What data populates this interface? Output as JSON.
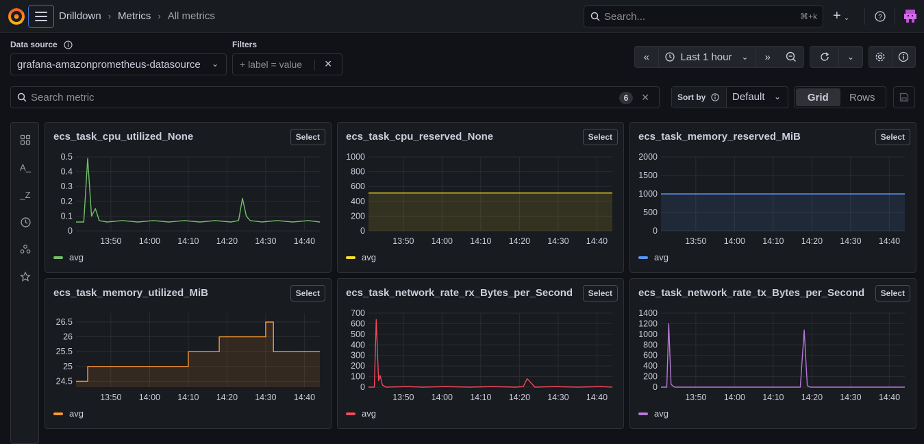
{
  "topbar": {
    "breadcrumb": [
      "Drilldown",
      "Metrics",
      "All metrics"
    ],
    "search_placeholder": "Search...",
    "search_shortcut": "⌘+k",
    "add_label": "+"
  },
  "controls": {
    "datasource_label": "Data source",
    "datasource_value": "grafana-amazonprometheus-datasource",
    "filters_label": "Filters",
    "filters_placeholder": "+ label = value",
    "time_range": "Last 1 hour",
    "metric_search_placeholder": "Search metric",
    "metric_count": "6",
    "sort_label": "Sort by",
    "sort_value": "Default",
    "layout_grid": "Grid",
    "layout_rows": "Rows"
  },
  "colors": {
    "green": "#73bf69",
    "yellow": "#fade2a",
    "blue": "#5794f2",
    "orange": "#ff9830",
    "red": "#f2495c",
    "purple": "#b877d9"
  },
  "panels": [
    {
      "title": "ecs_task_cpu_utilized_None",
      "select": "Select",
      "legend": "avg",
      "color": "#73bf69"
    },
    {
      "title": "ecs_task_cpu_reserved_None",
      "select": "Select",
      "legend": "avg",
      "color": "#fade2a"
    },
    {
      "title": "ecs_task_memory_reserved_MiB",
      "select": "Select",
      "legend": "avg",
      "color": "#5794f2"
    },
    {
      "title": "ecs_task_memory_utilized_MiB",
      "select": "Select",
      "legend": "avg",
      "color": "#ff9830"
    },
    {
      "title": "ecs_task_network_rate_rx_Bytes_per_Second",
      "select": "Select",
      "legend": "avg",
      "color": "#f2495c"
    },
    {
      "title": "ecs_task_network_rate_tx_Bytes_per_Second",
      "select": "Select",
      "legend": "avg",
      "color": "#b877d9"
    }
  ],
  "chart_data": [
    {
      "type": "line",
      "title": "ecs_task_cpu_utilized_None",
      "x_ticks": [
        "13:50",
        "14:00",
        "14:10",
        "14:20",
        "14:30",
        "14:40"
      ],
      "y_ticks": [
        "0",
        "0.1",
        "0.2",
        "0.3",
        "0.4",
        "0.5"
      ],
      "ylim": [
        0,
        0.5
      ],
      "xlim": [
        0,
        63
      ],
      "series": [
        {
          "name": "avg",
          "points": [
            [
              0,
              0.06
            ],
            [
              2,
              0.06
            ],
            [
              3,
              0.49
            ],
            [
              4,
              0.1
            ],
            [
              5,
              0.15
            ],
            [
              6,
              0.07
            ],
            [
              8,
              0.06
            ],
            [
              12,
              0.07
            ],
            [
              16,
              0.06
            ],
            [
              20,
              0.07
            ],
            [
              24,
              0.06
            ],
            [
              28,
              0.07
            ],
            [
              32,
              0.06
            ],
            [
              36,
              0.07
            ],
            [
              40,
              0.06
            ],
            [
              42,
              0.07
            ],
            [
              43,
              0.22
            ],
            [
              44,
              0.1
            ],
            [
              45,
              0.07
            ],
            [
              48,
              0.06
            ],
            [
              52,
              0.07
            ],
            [
              56,
              0.06
            ],
            [
              60,
              0.07
            ],
            [
              63,
              0.06
            ]
          ]
        }
      ]
    },
    {
      "type": "area",
      "title": "ecs_task_cpu_reserved_None",
      "x_ticks": [
        "13:50",
        "14:00",
        "14:10",
        "14:20",
        "14:30",
        "14:40"
      ],
      "y_ticks": [
        "0",
        "200",
        "400",
        "600",
        "800",
        "1000"
      ],
      "ylim": [
        0,
        1000
      ],
      "xlim": [
        0,
        63
      ],
      "series": [
        {
          "name": "avg",
          "points": [
            [
              0,
              512
            ],
            [
              63,
              512
            ]
          ]
        }
      ]
    },
    {
      "type": "area",
      "title": "ecs_task_memory_reserved_MiB",
      "x_ticks": [
        "13:50",
        "14:00",
        "14:10",
        "14:20",
        "14:30",
        "14:40"
      ],
      "y_ticks": [
        "0",
        "500",
        "1000",
        "1500",
        "2000"
      ],
      "ylim": [
        0,
        2000
      ],
      "xlim": [
        0,
        63
      ],
      "series": [
        {
          "name": "avg",
          "points": [
            [
              0,
              1000
            ],
            [
              63,
              1000
            ]
          ]
        }
      ]
    },
    {
      "type": "area",
      "title": "ecs_task_memory_utilized_MiB",
      "x_ticks": [
        "13:50",
        "14:00",
        "14:10",
        "14:20",
        "14:30",
        "14:40"
      ],
      "y_ticks": [
        "24.5",
        "25",
        "25.5",
        "26",
        "26.5"
      ],
      "ylim": [
        24.3,
        26.8
      ],
      "xlim": [
        0,
        63
      ],
      "series": [
        {
          "name": "avg",
          "points": [
            [
              0,
              24.5
            ],
            [
              3,
              24.5
            ],
            [
              3,
              25
            ],
            [
              29,
              25
            ],
            [
              29,
              25.5
            ],
            [
              37,
              25.5
            ],
            [
              37,
              26
            ],
            [
              49,
              26
            ],
            [
              49,
              26.5
            ],
            [
              51,
              26.5
            ],
            [
              51,
              25.5
            ],
            [
              63,
              25.5
            ]
          ]
        }
      ]
    },
    {
      "type": "line",
      "title": "ecs_task_network_rate_rx_Bytes_per_Second",
      "x_ticks": [
        "13:50",
        "14:00",
        "14:10",
        "14:20",
        "14:30",
        "14:40"
      ],
      "y_ticks": [
        "0",
        "100",
        "200",
        "300",
        "400",
        "500",
        "600",
        "700"
      ],
      "ylim": [
        0,
        700
      ],
      "xlim": [
        0,
        63
      ],
      "series": [
        {
          "name": "avg",
          "points": [
            [
              0,
              0
            ],
            [
              1.5,
              0
            ],
            [
              2,
              640
            ],
            [
              2.6,
              60
            ],
            [
              3,
              110
            ],
            [
              3.6,
              20
            ],
            [
              4.5,
              0
            ],
            [
              10,
              5
            ],
            [
              14,
              0
            ],
            [
              20,
              5
            ],
            [
              26,
              0
            ],
            [
              32,
              5
            ],
            [
              38,
              0
            ],
            [
              40,
              5
            ],
            [
              41,
              80
            ],
            [
              42,
              40
            ],
            [
              43,
              0
            ],
            [
              48,
              5
            ],
            [
              54,
              0
            ],
            [
              60,
              5
            ],
            [
              63,
              0
            ]
          ]
        }
      ]
    },
    {
      "type": "line",
      "title": "ecs_task_network_rate_tx_Bytes_per_Second",
      "x_ticks": [
        "13:50",
        "14:00",
        "14:10",
        "14:20",
        "14:30",
        "14:40"
      ],
      "y_ticks": [
        "0",
        "200",
        "400",
        "600",
        "800",
        "1000",
        "1200",
        "1400"
      ],
      "ylim": [
        0,
        1400
      ],
      "xlim": [
        0,
        63
      ],
      "series": [
        {
          "name": "avg",
          "points": [
            [
              0,
              0
            ],
            [
              1.5,
              0
            ],
            [
              2,
              1200
            ],
            [
              2.6,
              50
            ],
            [
              3.5,
              0
            ],
            [
              36,
              0
            ],
            [
              37,
              1080
            ],
            [
              37.8,
              30
            ],
            [
              38.5,
              0
            ],
            [
              63,
              0
            ]
          ]
        }
      ]
    }
  ]
}
